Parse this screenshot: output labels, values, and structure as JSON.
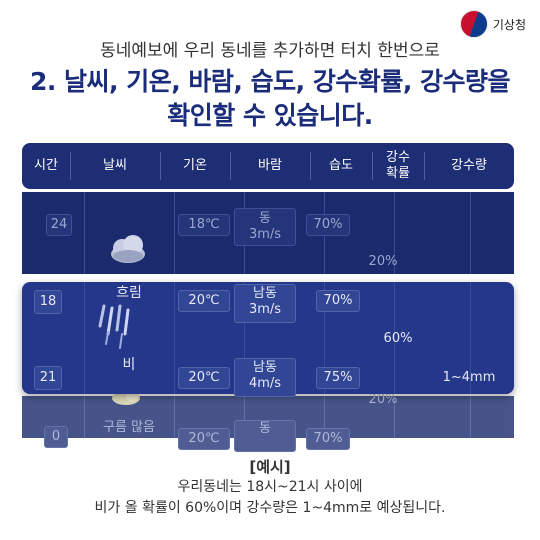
{
  "logo": {
    "text": "기상청",
    "icon": "kma-taegeuk-icon"
  },
  "headline": "동네예보에 우리 동네를 추가하면 터치 한번으로",
  "title": {
    "line1": "2. 날씨, 기온, 바람, 습도, 강수확률, 강수량을",
    "line2": "확인할 수 있습니다."
  },
  "columns": [
    "시간",
    "날씨",
    "기온",
    "바람",
    "습도",
    "강수\n확률",
    "강수량"
  ],
  "rows": {
    "prev": {
      "time": "24",
      "weather_icon": "cloudy-icon",
      "temp": "18℃",
      "wind_dir": "동",
      "wind_speed": "3m/s",
      "humidity": "70%",
      "precip_prob": "20%"
    },
    "h18": {
      "time": "18",
      "weather": "흐림",
      "temp": "20℃",
      "wind_dir": "남동",
      "wind_speed": "3m/s",
      "humidity": "70%"
    },
    "h21": {
      "time": "21",
      "weather": "비",
      "temp": "20℃",
      "wind_dir": "남동",
      "wind_speed": "4m/s",
      "humidity": "75%"
    },
    "group": {
      "precip_prob": "60%",
      "precip_amount": "1~4mm"
    },
    "next": {
      "time": "0",
      "weather": "구름 많음",
      "temp": "20℃",
      "wind_dir": "동",
      "humidity": "70%",
      "precip_prob": "20%"
    }
  },
  "footer": {
    "label": "[예시]",
    "line1": "우리동네는 18시~21시 사이에",
    "line2": "비가 올 확률이 60%이며 강수량은 1~4mm로 예상됩니다."
  },
  "colors": {
    "navy": "#1e2e74",
    "highlight": "#25378a",
    "title": "#1b2d7a"
  }
}
